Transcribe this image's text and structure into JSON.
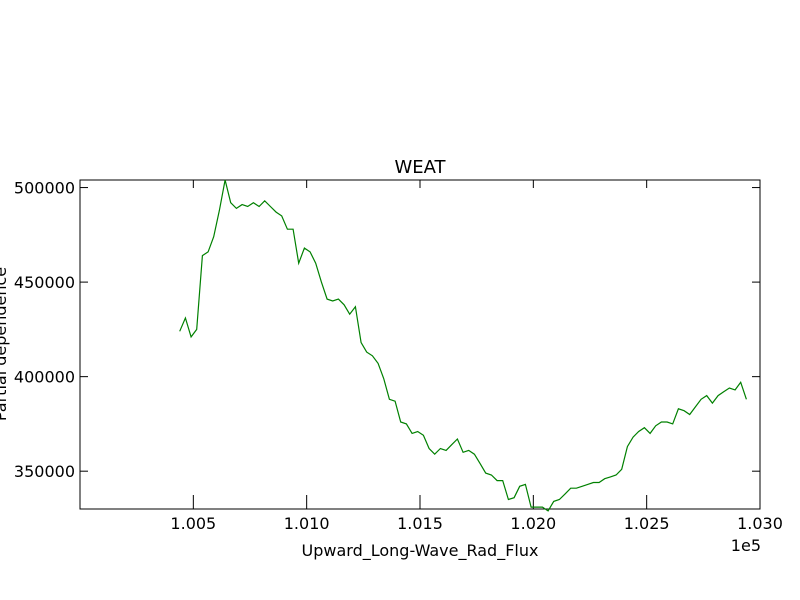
{
  "chart_data": {
    "type": "line",
    "title": "WEAT",
    "xlabel": "Upward_Long-Wave_Rad_Flux",
    "ylabel": "Partial dependence",
    "x_offset_label": "1e5",
    "xlim": [
      100000,
      103000
    ],
    "ylim": [
      330000,
      504000
    ],
    "x_tick_labels": [
      "1.005",
      "1.010",
      "1.015",
      "1.020",
      "1.025",
      "1.030"
    ],
    "y_tick_labels": [
      "350000",
      "400000",
      "450000",
      "500000"
    ],
    "grid": false,
    "line_color": "#008000",
    "series": [
      {
        "x": [
          100440,
          100465,
          100490,
          100515,
          100540,
          100565,
          100590,
          100615,
          100640,
          100665,
          100690,
          100715,
          100740,
          100765,
          100790,
          100815,
          100840,
          100865,
          100890,
          100915,
          100940,
          100965,
          100990,
          101015,
          101040,
          101065,
          101090,
          101115,
          101140,
          101165,
          101190,
          101215,
          101240,
          101265,
          101290,
          101315,
          101340,
          101365,
          101390,
          101415,
          101440,
          101465,
          101490,
          101515,
          101540,
          101565,
          101590,
          101615,
          101640,
          101665,
          101690,
          101715,
          101740,
          101765,
          101790,
          101815,
          101840,
          101865,
          101890,
          101915,
          101940,
          101965,
          101990,
          102015,
          102040,
          102065,
          102090,
          102115,
          102140,
          102165,
          102190,
          102215,
          102240,
          102265,
          102290,
          102315,
          102340,
          102365,
          102390,
          102415,
          102440,
          102465,
          102490,
          102515,
          102540,
          102565,
          102590,
          102615,
          102640,
          102665,
          102690,
          102715,
          102740,
          102765,
          102790,
          102815,
          102840,
          102865,
          102890,
          102915,
          102940
        ],
        "y": [
          424000,
          431000,
          421000,
          425000,
          464000,
          466000,
          474000,
          488000,
          504000,
          492000,
          489000,
          491000,
          490000,
          492000,
          490000,
          493000,
          490000,
          487000,
          485000,
          478000,
          478000,
          460000,
          468000,
          466000,
          460000,
          450000,
          441000,
          440000,
          441000,
          438000,
          433000,
          437000,
          418000,
          413000,
          411000,
          407000,
          399000,
          388000,
          387000,
          376000,
          375000,
          370000,
          371000,
          369000,
          362000,
          359000,
          362000,
          361000,
          364000,
          367000,
          360000,
          361000,
          359000,
          354000,
          349000,
          348000,
          345000,
          345000,
          335000,
          336000,
          342000,
          343000,
          331000,
          331000,
          331000,
          329000,
          334000,
          335000,
          338000,
          341000,
          341000,
          342000,
          343000,
          344000,
          344000,
          346000,
          347000,
          348000,
          351000,
          363000,
          368000,
          371000,
          373000,
          370000,
          374000,
          376000,
          376000,
          375000,
          383000,
          382000,
          380000,
          384000,
          388000,
          390000,
          386000,
          390000,
          392000,
          394000,
          393000,
          397000,
          388000
        ]
      }
    ]
  }
}
